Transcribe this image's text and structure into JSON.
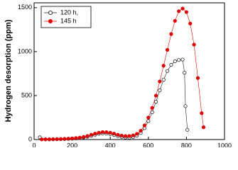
{
  "chart_data": {
    "type": "scatter-line",
    "ylabel": "Hydrogen desorption (ppm)",
    "xlim": [
      0,
      1000
    ],
    "xticks": [
      0,
      200,
      400,
      600,
      800,
      1000
    ],
    "ylim": [
      0,
      1555
    ],
    "yticks": [
      0,
      500,
      1000,
      1500
    ],
    "legend": "upper-left",
    "series": [
      {
        "name": "120 h,",
        "color": "#222222",
        "marker": "open",
        "x": [
          30,
          60,
          80,
          100,
          120,
          140,
          160,
          180,
          200,
          220,
          240,
          260,
          280,
          300,
          320,
          340,
          360,
          380,
          400,
          420,
          440,
          460,
          480,
          500,
          520,
          540,
          560,
          580,
          600,
          620,
          640,
          660,
          680,
          700,
          720,
          740,
          760,
          780,
          790,
          795,
          805
        ],
        "values": [
          25,
          2,
          2,
          3,
          4,
          5,
          6,
          8,
          10,
          13,
          18,
          24,
          32,
          42,
          55,
          65,
          70,
          68,
          62,
          52,
          40,
          30,
          24,
          22,
          28,
          45,
          75,
          130,
          210,
          310,
          430,
          560,
          680,
          780,
          850,
          890,
          905,
          910,
          760,
          380,
          110
        ]
      },
      {
        "name": "145 h",
        "color": "#e00000",
        "marker": "filled",
        "x": [
          40,
          60,
          80,
          100,
          120,
          140,
          160,
          180,
          200,
          220,
          240,
          260,
          280,
          300,
          320,
          340,
          360,
          380,
          400,
          420,
          440,
          460,
          480,
          500,
          520,
          540,
          560,
          580,
          600,
          620,
          640,
          660,
          680,
          700,
          720,
          740,
          760,
          780,
          800,
          820,
          840,
          860,
          880,
          890
        ],
        "values": [
          2,
          3,
          3,
          4,
          5,
          6,
          8,
          10,
          13,
          17,
          22,
          30,
          40,
          55,
          68,
          78,
          85,
          84,
          78,
          68,
          55,
          45,
          40,
          40,
          48,
          65,
          100,
          160,
          250,
          360,
          500,
          660,
          840,
          1020,
          1200,
          1350,
          1460,
          1490,
          1450,
          1320,
          1080,
          700,
          300,
          140
        ]
      }
    ]
  }
}
